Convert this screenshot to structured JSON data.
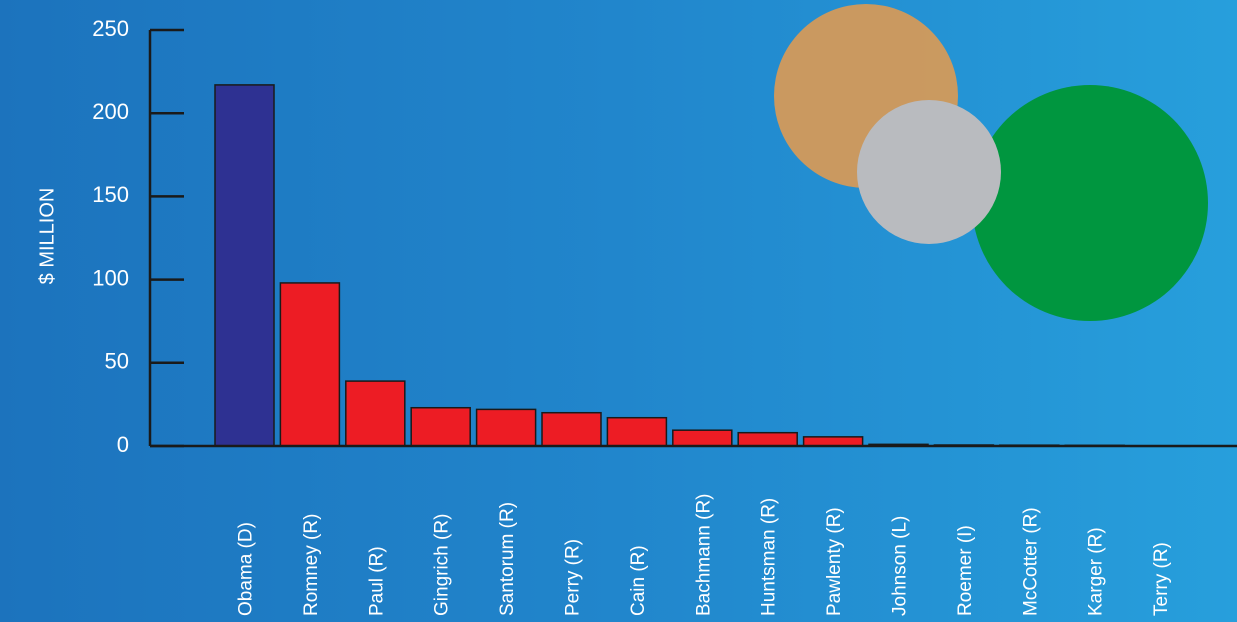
{
  "chart_data": {
    "type": "bar",
    "title": "",
    "xlabel": "",
    "ylabel": "$ MILLION",
    "ylim": [
      0,
      250
    ],
    "yticks": [
      0,
      50,
      100,
      150,
      200,
      250
    ],
    "categories": [
      "Obama (D)",
      "Romney (R)",
      "Paul (R)",
      "Gingrich (R)",
      "Santorum (R)",
      "Perry (R)",
      "Cain (R)",
      "Bachmann (R)",
      "Huntsman (R)",
      "Pawlenty (R)",
      "Johnson (L)",
      "Roemer (I)",
      "McCotter (R)",
      "Karger (R)",
      "Terry (R)"
    ],
    "values": [
      217,
      98,
      39,
      23,
      22,
      20,
      17,
      9.5,
      8,
      5.5,
      1,
      0.6,
      0.5,
      0.4,
      0.1
    ],
    "colors": [
      "#2e3192",
      "#ed1c24",
      "#ed1c24",
      "#ed1c24",
      "#ed1c24",
      "#ed1c24",
      "#ed1c24",
      "#ed1c24",
      "#ed1c24",
      "#ed1c24",
      "#ed1c24",
      "#ed1c24",
      "#ed1c24",
      "#ed1c24",
      "#ed1c24"
    ],
    "grid": false,
    "legend": "none"
  },
  "decoration": {
    "circle_colors": [
      "#d49a5a",
      "#b9bbbf",
      "#00963f"
    ]
  }
}
